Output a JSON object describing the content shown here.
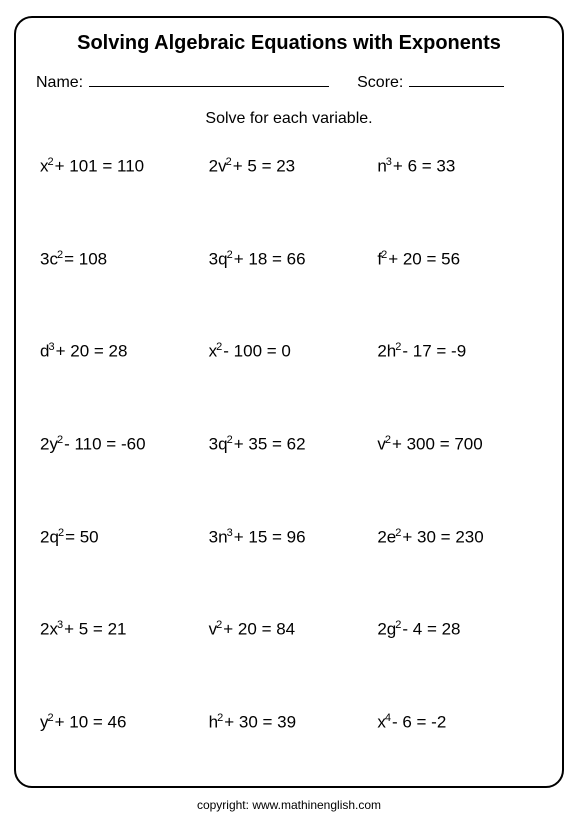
{
  "title": "Solving Algebraic Equations with Exponents",
  "labels": {
    "name": "Name:",
    "score": "Score:"
  },
  "instruction": "Solve for each variable.",
  "equations": [
    {
      "base": "x",
      "exp": "2",
      "rest": "+ 101 = 110",
      "coef": ""
    },
    {
      "base": "v",
      "exp": "2",
      "rest": "+ 5 = 23",
      "coef": "2"
    },
    {
      "base": "n",
      "exp": "3",
      "rest": "+ 6 = 33",
      "coef": ""
    },
    {
      "base": "c",
      "exp": "2",
      "rest": "= 108",
      "coef": "3"
    },
    {
      "base": "q",
      "exp": "2",
      "rest": "+ 18 = 66",
      "coef": "3"
    },
    {
      "base": "f",
      "exp": "2",
      "rest": "+ 20 = 56",
      "coef": ""
    },
    {
      "base": "d",
      "exp": "3",
      "rest": "+ 20 = 28",
      "coef": ""
    },
    {
      "base": "x",
      "exp": "2",
      "rest": "- 100 = 0",
      "coef": ""
    },
    {
      "base": "h",
      "exp": "2",
      "rest": "- 17  = -9",
      "coef": "2"
    },
    {
      "base": "y",
      "exp": "2",
      "rest": "- 110 = -60",
      "coef": "2"
    },
    {
      "base": "q",
      "exp": "2",
      "rest": "+ 35 = 62",
      "coef": "3"
    },
    {
      "base": "v",
      "exp": "2",
      "rest": "+ 300 = 700",
      "coef": ""
    },
    {
      "base": "q",
      "exp": "2",
      "rest": "= 50",
      "coef": "2"
    },
    {
      "base": "n",
      "exp": "3",
      "rest": "+ 15 = 96",
      "coef": "3"
    },
    {
      "base": "e",
      "exp": "2",
      "rest": "+ 30 = 230",
      "coef": "2"
    },
    {
      "base": "x",
      "exp": "3",
      "rest": "+ 5 = 21",
      "coef": "2"
    },
    {
      "base": "v",
      "exp": "2",
      "rest": "+ 20 = 84",
      "coef": ""
    },
    {
      "base": "g",
      "exp": "2",
      "rest": "- 4 = 28",
      "coef": "2"
    },
    {
      "base": "y",
      "exp": "2",
      "rest": "+ 10 = 46",
      "coef": ""
    },
    {
      "base": "h",
      "exp": "2",
      "rest": "+ 30 = 39",
      "coef": ""
    },
    {
      "base": "x",
      "exp": "4",
      "rest": "- 6 = -2",
      "coef": ""
    }
  ],
  "copyright": "copyright:   www.mathinenglish.com"
}
